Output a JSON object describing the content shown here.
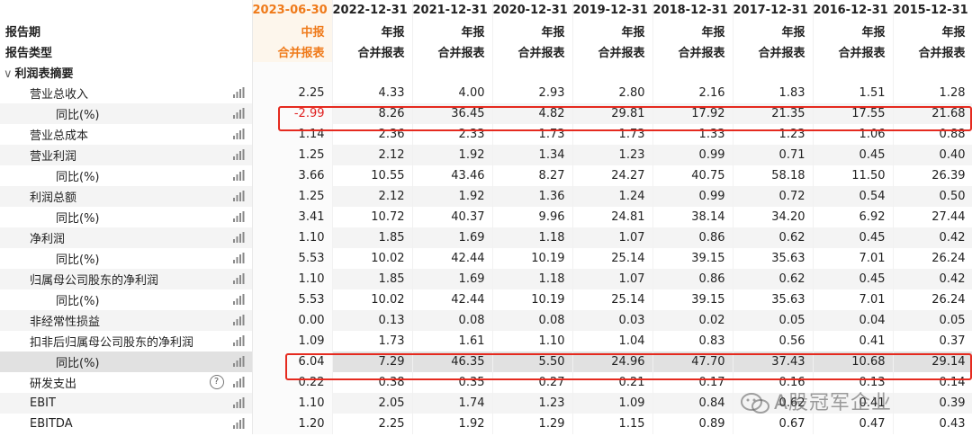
{
  "periods": [
    "2023-06-30",
    "2022-12-31",
    "2021-12-31",
    "2020-12-31",
    "2019-12-31",
    "2018-12-31",
    "2017-12-31",
    "2016-12-31",
    "2015-12-31"
  ],
  "report_period_label": "报告期",
  "report_type_label": "报告类型",
  "period_types": [
    "中报",
    "年报",
    "年报",
    "年报",
    "年报",
    "年报",
    "年报",
    "年报",
    "年报"
  ],
  "consolidation": [
    "合并报表",
    "合并报表",
    "合并报表",
    "合并报表",
    "合并报表",
    "合并报表",
    "合并报表",
    "合并报表",
    "合并报表"
  ],
  "section": {
    "toggle": "∨",
    "title": "利润表摘要"
  },
  "rows": [
    {
      "label": "营业总收入",
      "values": [
        "2.25",
        "4.33",
        "4.00",
        "2.93",
        "2.80",
        "2.16",
        "1.83",
        "1.51",
        "1.28"
      ]
    },
    {
      "label": "同比(%)",
      "sub": true,
      "values": [
        "-2.99",
        "8.26",
        "36.45",
        "4.82",
        "29.81",
        "17.92",
        "21.35",
        "17.55",
        "21.68"
      ]
    },
    {
      "label": "营业总成本",
      "values": [
        "1.14",
        "2.36",
        "2.33",
        "1.73",
        "1.73",
        "1.33",
        "1.23",
        "1.06",
        "0.88"
      ]
    },
    {
      "label": "营业利润",
      "values": [
        "1.25",
        "2.12",
        "1.92",
        "1.34",
        "1.23",
        "0.99",
        "0.71",
        "0.45",
        "0.40"
      ]
    },
    {
      "label": "同比(%)",
      "sub": true,
      "values": [
        "3.66",
        "10.55",
        "43.46",
        "8.27",
        "24.27",
        "40.75",
        "58.18",
        "11.50",
        "26.39"
      ]
    },
    {
      "label": "利润总额",
      "values": [
        "1.25",
        "2.12",
        "1.92",
        "1.36",
        "1.24",
        "0.99",
        "0.72",
        "0.54",
        "0.50"
      ]
    },
    {
      "label": "同比(%)",
      "sub": true,
      "values": [
        "3.41",
        "10.72",
        "40.37",
        "9.96",
        "24.81",
        "38.14",
        "34.20",
        "6.92",
        "27.44"
      ]
    },
    {
      "label": "净利润",
      "values": [
        "1.10",
        "1.85",
        "1.69",
        "1.18",
        "1.07",
        "0.86",
        "0.62",
        "0.45",
        "0.42"
      ]
    },
    {
      "label": "同比(%)",
      "sub": true,
      "values": [
        "5.53",
        "10.02",
        "42.44",
        "10.19",
        "25.14",
        "39.15",
        "35.63",
        "7.01",
        "26.24"
      ]
    },
    {
      "label": "归属母公司股东的净利润",
      "values": [
        "1.10",
        "1.85",
        "1.69",
        "1.18",
        "1.07",
        "0.86",
        "0.62",
        "0.45",
        "0.42"
      ]
    },
    {
      "label": "同比(%)",
      "sub": true,
      "values": [
        "5.53",
        "10.02",
        "42.44",
        "10.19",
        "25.14",
        "39.15",
        "35.63",
        "7.01",
        "26.24"
      ]
    },
    {
      "label": "非经常性损益",
      "values": [
        "0.00",
        "0.13",
        "0.08",
        "0.08",
        "0.03",
        "0.02",
        "0.05",
        "0.04",
        "0.05"
      ]
    },
    {
      "label": "扣非后归属母公司股东的净利润",
      "values": [
        "1.09",
        "1.73",
        "1.61",
        "1.10",
        "1.04",
        "0.83",
        "0.56",
        "0.41",
        "0.37"
      ]
    },
    {
      "label": "同比(%)",
      "sub": true,
      "selected": true,
      "values": [
        "6.04",
        "7.29",
        "46.35",
        "5.50",
        "24.96",
        "47.70",
        "37.43",
        "10.68",
        "29.14"
      ]
    },
    {
      "label": "研发支出",
      "help": "?",
      "values": [
        "0.22",
        "0.38",
        "0.35",
        "0.27",
        "0.21",
        "0.17",
        "0.16",
        "0.13",
        "0.14"
      ]
    },
    {
      "label": "EBIT",
      "values": [
        "1.10",
        "2.05",
        "1.74",
        "1.23",
        "1.09",
        "0.84",
        "0.62",
        "0.41",
        "0.39"
      ]
    },
    {
      "label": "EBITDA",
      "values": [
        "1.20",
        "2.25",
        "1.92",
        "1.29",
        "1.15",
        "0.89",
        "0.67",
        "0.47",
        "0.43"
      ]
    }
  ],
  "watermark": "A股冠军企业",
  "colors": {
    "accent": "#ef7a1a",
    "negative": "#e02020",
    "highlight_box": "#e52a1f"
  }
}
